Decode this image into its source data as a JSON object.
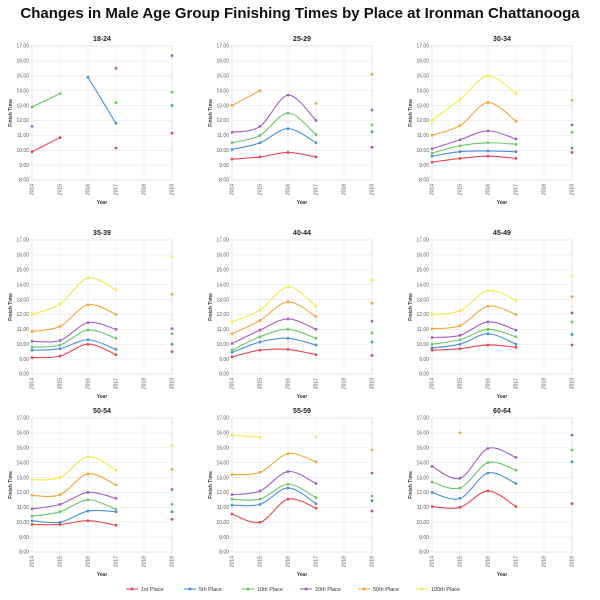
{
  "title": "Changes in Male Age Group Finishing Times by Place at Ironman Chattanooga",
  "colors": {
    "1st Place": "#e8474f",
    "5th Place": "#4a90d9",
    "10th Place": "#6cc46a",
    "20th Place": "#a35fc1",
    "50th Place": "#f5a43b",
    "100th Place": "#f5e84a"
  },
  "chart_data": [
    {
      "type": "line",
      "title": "18-24",
      "xlabel": "Year",
      "ylabel": "Finish Time",
      "x": [
        2014,
        2015,
        2016,
        2017,
        2018,
        2019
      ],
      "ylim": [
        8,
        17
      ],
      "series": [
        {
          "name": "1st Place",
          "values": [
            9.9,
            10.85,
            null,
            10.15,
            null,
            11.15
          ]
        },
        {
          "name": "5th Place",
          "values": [
            11.6,
            null,
            14.9,
            11.8,
            null,
            13.0
          ]
        },
        {
          "name": "10th Place",
          "values": [
            12.9,
            13.8,
            null,
            13.2,
            null,
            13.9
          ]
        },
        {
          "name": "20th Place",
          "values": [
            null,
            null,
            null,
            15.5,
            null,
            16.35
          ]
        }
      ]
    },
    {
      "type": "line",
      "title": "25-29",
      "xlabel": "Year",
      "ylabel": "Finish Time",
      "x": [
        2014,
        2015,
        2016,
        2017,
        2018,
        2019
      ],
      "ylim": [
        8,
        17
      ],
      "series": [
        {
          "name": "1st Place",
          "values": [
            9.4,
            9.55,
            9.85,
            9.55,
            null,
            10.2
          ]
        },
        {
          "name": "5th Place",
          "values": [
            10.05,
            10.5,
            11.45,
            10.5,
            null,
            11.25
          ]
        },
        {
          "name": "10th Place",
          "values": [
            10.5,
            11.0,
            12.5,
            11.05,
            null,
            11.7
          ]
        },
        {
          "name": "20th Place",
          "values": [
            11.2,
            11.6,
            13.7,
            12.0,
            null,
            12.7
          ]
        },
        {
          "name": "50th Place",
          "values": [
            13.0,
            14.0,
            null,
            13.15,
            null,
            15.1
          ]
        }
      ]
    },
    {
      "type": "line",
      "title": "30-34",
      "xlabel": "Year",
      "ylabel": "Finish Time",
      "x": [
        2014,
        2015,
        2016,
        2017,
        2018,
        2019
      ],
      "ylim": [
        8,
        17
      ],
      "series": [
        {
          "name": "1st Place",
          "values": [
            9.2,
            9.45,
            9.6,
            9.45,
            null,
            9.85
          ]
        },
        {
          "name": "5th Place",
          "values": [
            9.6,
            9.9,
            9.95,
            9.9,
            null,
            10.15
          ]
        },
        {
          "name": "10th Place",
          "values": [
            9.8,
            10.3,
            10.5,
            10.4,
            null,
            11.2
          ]
        },
        {
          "name": "20th Place",
          "values": [
            10.1,
            10.7,
            11.3,
            10.75,
            null,
            11.7
          ]
        },
        {
          "name": "50th Place",
          "values": [
            11.0,
            11.65,
            13.2,
            11.95,
            null,
            13.35
          ]
        },
        {
          "name": "100th Place",
          "values": [
            12.0,
            13.4,
            15.0,
            13.8,
            null,
            null
          ]
        }
      ]
    },
    {
      "type": "line",
      "title": "35-39",
      "xlabel": "Year",
      "ylabel": "Finish Time",
      "x": [
        2014,
        2015,
        2016,
        2017,
        2018,
        2019
      ],
      "ylim": [
        8,
        17
      ],
      "series": [
        {
          "name": "1st Place",
          "values": [
            9.1,
            9.2,
            10.0,
            9.3,
            null,
            9.5
          ]
        },
        {
          "name": "5th Place",
          "values": [
            9.6,
            9.7,
            10.3,
            9.65,
            null,
            10.0
          ]
        },
        {
          "name": "10th Place",
          "values": [
            9.8,
            9.95,
            10.95,
            10.4,
            null,
            10.7
          ]
        },
        {
          "name": "20th Place",
          "values": [
            10.2,
            10.25,
            11.45,
            11.0,
            null,
            11.05
          ]
        },
        {
          "name": "50th Place",
          "values": [
            10.85,
            11.2,
            12.65,
            12.0,
            null,
            13.35
          ]
        },
        {
          "name": "100th Place",
          "values": [
            12.0,
            12.7,
            14.45,
            13.65,
            null,
            15.85
          ]
        }
      ]
    },
    {
      "type": "line",
      "title": "40-44",
      "xlabel": "Year",
      "ylabel": "Finish Time",
      "x": [
        2014,
        2015,
        2016,
        2017,
        2018,
        2019
      ],
      "ylim": [
        8,
        17
      ],
      "series": [
        {
          "name": "1st Place",
          "values": [
            9.15,
            9.6,
            9.65,
            9.3,
            null,
            9.25
          ]
        },
        {
          "name": "5th Place",
          "values": [
            9.45,
            10.15,
            10.4,
            9.95,
            null,
            10.15
          ]
        },
        {
          "name": "10th Place",
          "values": [
            9.6,
            10.5,
            11.0,
            10.4,
            null,
            10.75
          ]
        },
        {
          "name": "20th Place",
          "values": [
            10.05,
            10.95,
            11.7,
            11.0,
            null,
            11.55
          ]
        },
        {
          "name": "50th Place",
          "values": [
            10.7,
            11.6,
            12.85,
            11.85,
            null,
            12.75
          ]
        },
        {
          "name": "100th Place",
          "values": [
            11.5,
            12.3,
            13.85,
            12.55,
            null,
            14.3
          ]
        }
      ]
    },
    {
      "type": "line",
      "title": "45-49",
      "xlabel": "Year",
      "ylabel": "Finish Time",
      "x": [
        2014,
        2015,
        2016,
        2017,
        2018,
        2019
      ],
      "ylim": [
        8,
        17
      ],
      "series": [
        {
          "name": "1st Place",
          "values": [
            9.6,
            9.7,
            9.95,
            9.8,
            null,
            9.95
          ]
        },
        {
          "name": "5th Place",
          "values": [
            9.75,
            10.0,
            10.7,
            10.0,
            null,
            10.65
          ]
        },
        {
          "name": "10th Place",
          "values": [
            10.0,
            10.3,
            11.0,
            10.5,
            null,
            11.5
          ]
        },
        {
          "name": "20th Place",
          "values": [
            10.45,
            10.6,
            11.5,
            10.95,
            null,
            12.1
          ]
        },
        {
          "name": "50th Place",
          "values": [
            11.05,
            11.25,
            12.55,
            12.0,
            null,
            13.2
          ]
        },
        {
          "name": "100th Place",
          "values": [
            12.0,
            12.25,
            13.6,
            12.95,
            null,
            14.55
          ]
        }
      ]
    },
    {
      "type": "line",
      "title": "50-54",
      "xlabel": "Year",
      "ylabel": "Finish Time",
      "x": [
        2014,
        2015,
        2016,
        2017,
        2018,
        2019
      ],
      "ylim": [
        8,
        17
      ],
      "series": [
        {
          "name": "1st Place",
          "values": [
            9.85,
            9.85,
            10.1,
            9.8,
            null,
            10.2
          ]
        },
        {
          "name": "5th Place",
          "values": [
            10.1,
            10.0,
            10.75,
            10.7,
            null,
            10.7
          ]
        },
        {
          "name": "10th Place",
          "values": [
            10.4,
            10.7,
            11.5,
            10.85,
            null,
            11.2
          ]
        },
        {
          "name": "20th Place",
          "values": [
            10.9,
            11.2,
            12.0,
            11.6,
            null,
            12.2
          ]
        },
        {
          "name": "50th Place",
          "values": [
            11.8,
            11.85,
            13.25,
            12.5,
            null,
            13.55
          ]
        },
        {
          "name": "100th Place",
          "values": [
            12.85,
            13.0,
            14.4,
            13.5,
            null,
            15.15
          ]
        }
      ]
    },
    {
      "type": "line",
      "title": "55-59",
      "xlabel": "Year",
      "ylabel": "Finish Time",
      "x": [
        2014,
        2015,
        2016,
        2017,
        2018,
        2019
      ],
      "ylim": [
        8,
        17
      ],
      "series": [
        {
          "name": "1st Place",
          "values": [
            10.55,
            10.0,
            11.55,
            10.95,
            null,
            10.75
          ]
        },
        {
          "name": "5th Place",
          "values": [
            11.15,
            11.2,
            12.3,
            11.25,
            null,
            11.45
          ]
        },
        {
          "name": "10th Place",
          "values": [
            11.55,
            11.55,
            12.55,
            11.65,
            null,
            11.75
          ]
        },
        {
          "name": "20th Place",
          "values": [
            11.85,
            12.1,
            13.4,
            12.6,
            null,
            13.3
          ]
        },
        {
          "name": "50th Place",
          "values": [
            13.2,
            13.35,
            14.6,
            14.05,
            null,
            14.85
          ]
        },
        {
          "name": "100th Place",
          "values": [
            15.85,
            15.7,
            null,
            15.75,
            null,
            null
          ]
        }
      ]
    },
    {
      "type": "line",
      "title": "60-64",
      "xlabel": "Year",
      "ylabel": "Finish Time",
      "x": [
        2014,
        2015,
        2016,
        2017,
        2018,
        2019
      ],
      "ylim": [
        8,
        17
      ],
      "series": [
        {
          "name": "1st Place",
          "values": [
            11.05,
            11.0,
            12.1,
            11.05,
            null,
            11.25
          ]
        },
        {
          "name": "5th Place",
          "values": [
            12.0,
            11.6,
            13.3,
            12.6,
            null,
            14.05
          ]
        },
        {
          "name": "10th Place",
          "values": [
            12.7,
            12.3,
            14.0,
            13.5,
            null,
            14.85
          ]
        },
        {
          "name": "20th Place",
          "values": [
            13.75,
            12.95,
            14.95,
            14.35,
            null,
            15.85
          ]
        },
        {
          "name": "50th Place",
          "values": [
            null,
            16.0,
            null,
            null,
            null,
            null
          ]
        }
      ]
    }
  ],
  "legend": [
    "1st Place",
    "5th Place",
    "10th Place",
    "20th Place",
    "50th Place",
    "100th Place"
  ]
}
